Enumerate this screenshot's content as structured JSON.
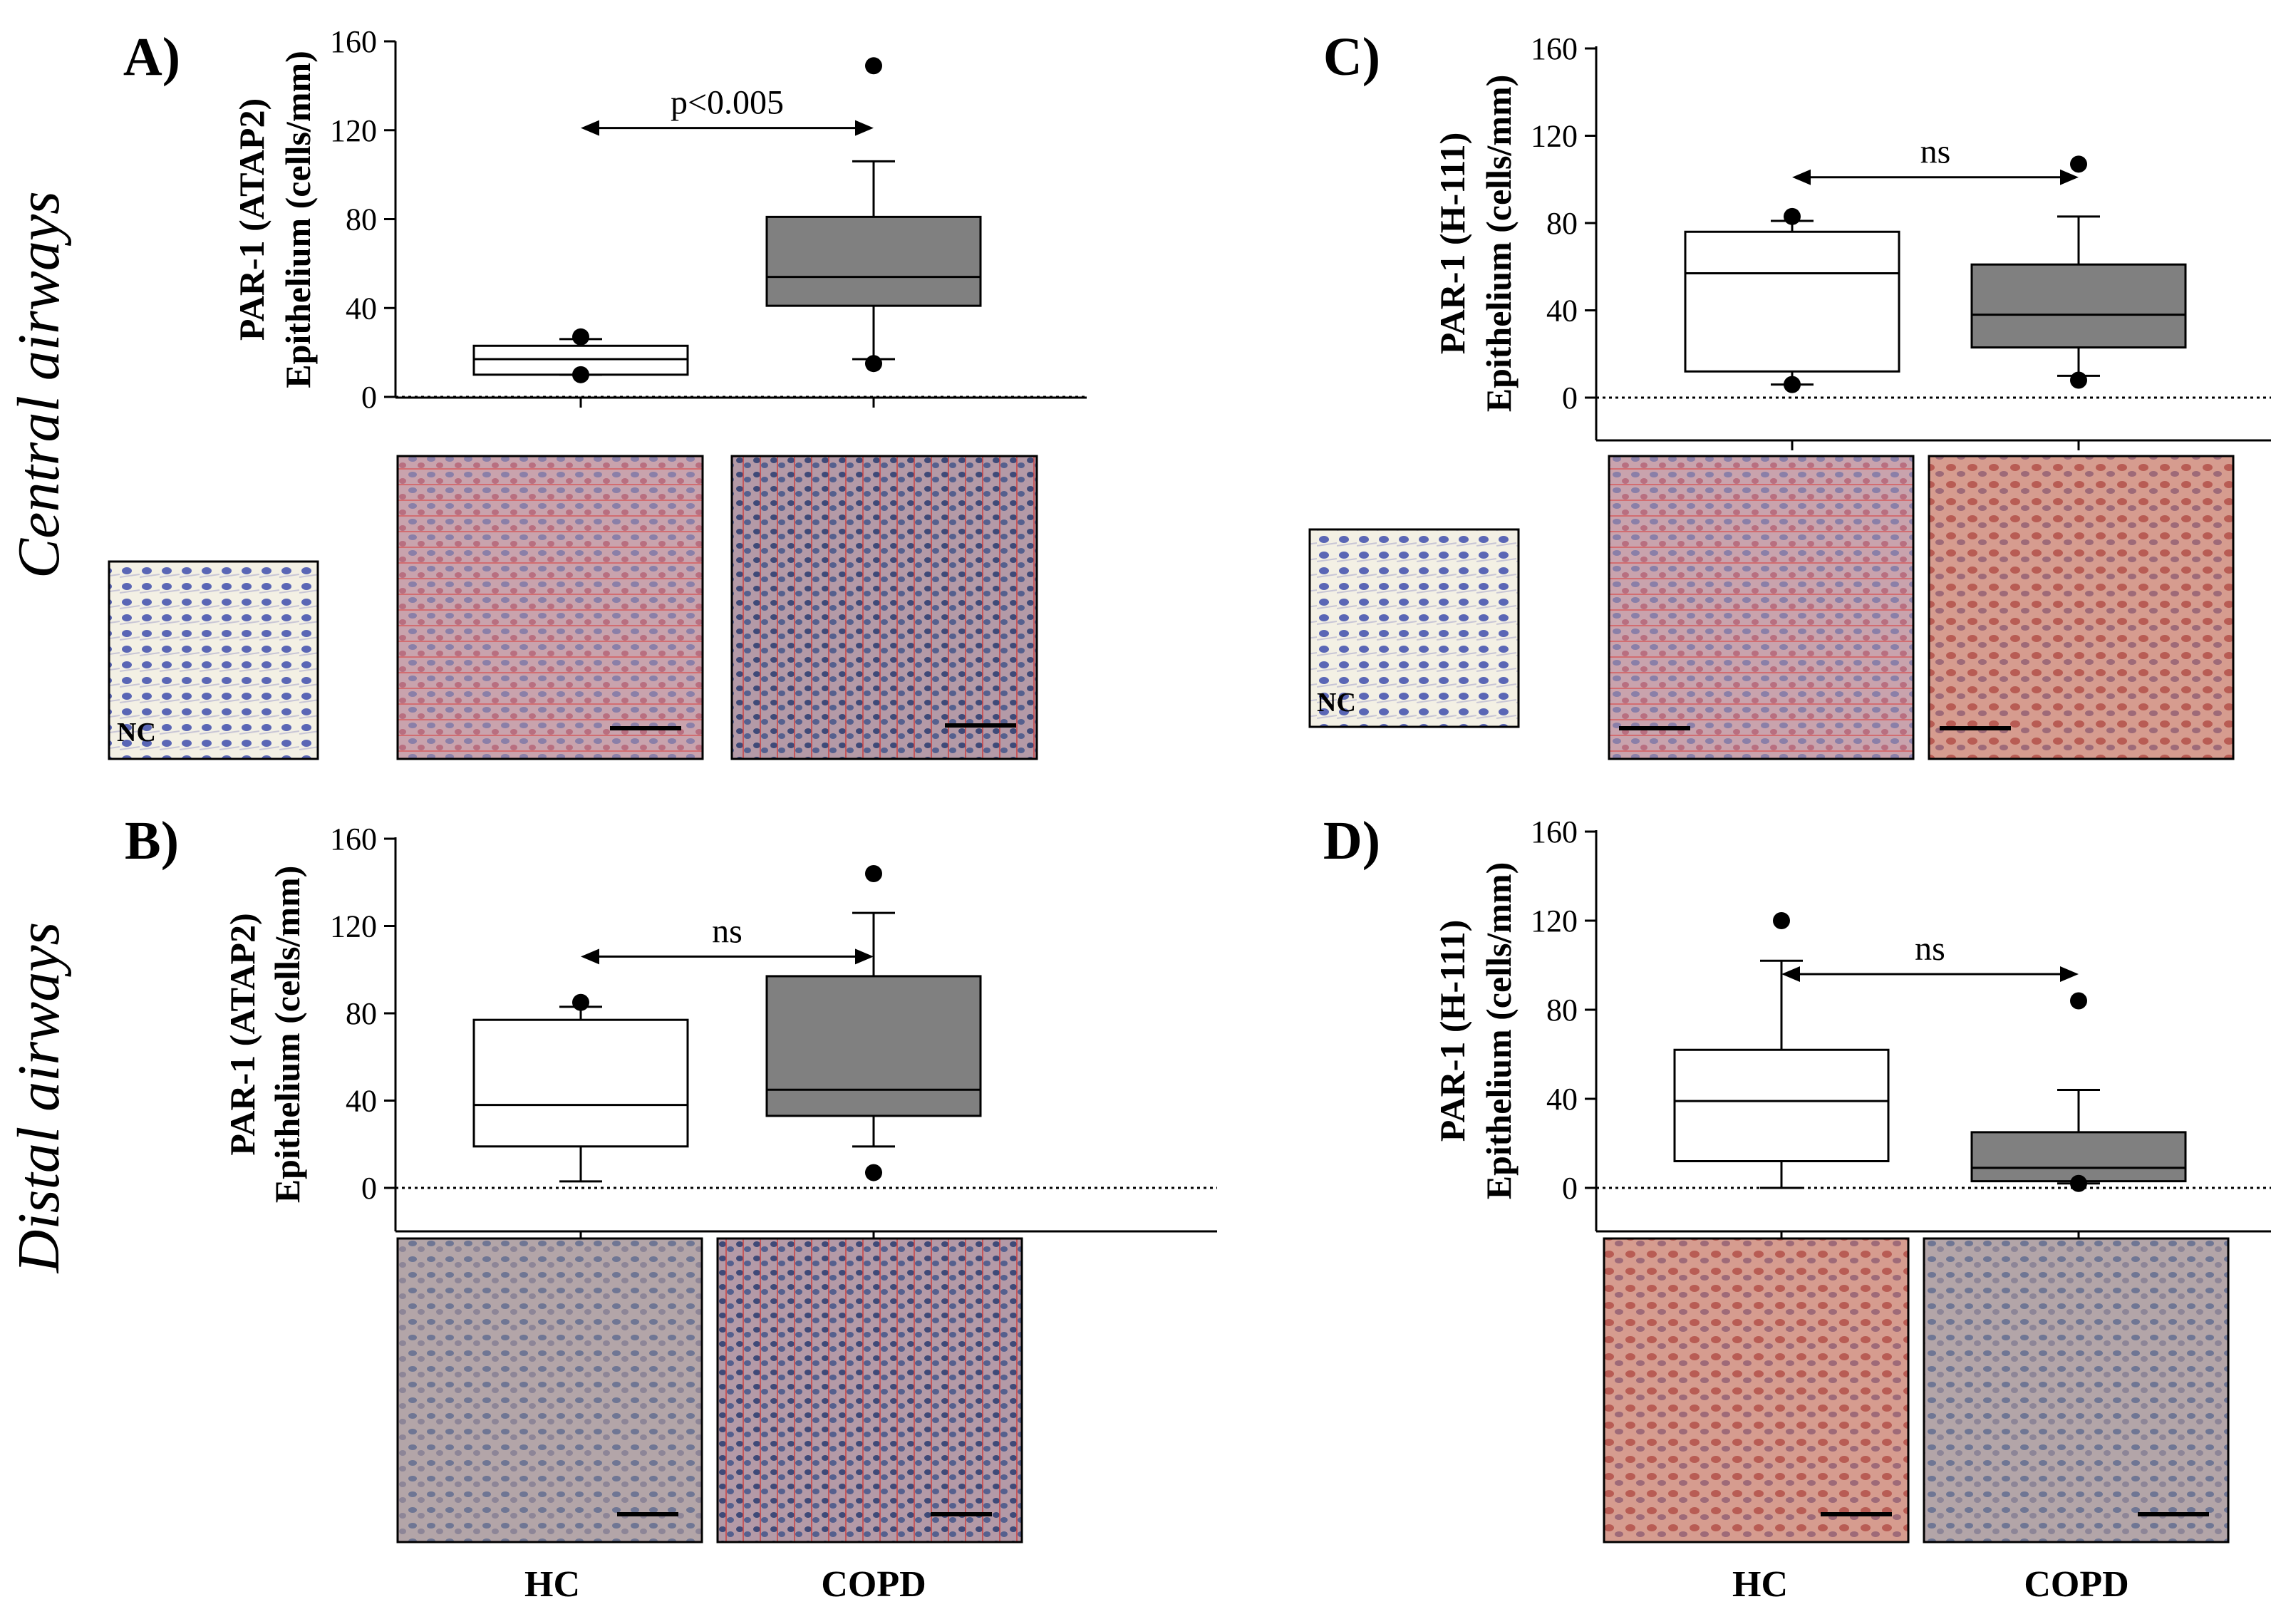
{
  "row_labels": [
    "Central airways",
    "Distal airways"
  ],
  "group_labels": [
    "HC",
    "COPD"
  ],
  "nc_label": "NC",
  "colors": {
    "hc_box": "#ffffff",
    "copd_box": "#808080",
    "stroke": "#000000"
  },
  "chart_data": [
    {
      "type": "box",
      "panel": "A)",
      "ylabel_line1": "PAR-1 (ATAP2)",
      "ylabel_line2": "Epithelium (cells/mm)",
      "ylim": [
        0,
        160
      ],
      "yticks": [
        0,
        40,
        80,
        120,
        160
      ],
      "annotation": "p<0.005",
      "categories": [
        "HC",
        "COPD"
      ],
      "series": [
        {
          "group": "HC",
          "whisker_low": 10,
          "q1": 10,
          "median": 17,
          "q3": 23,
          "whisker_high": 26,
          "outliers": [
            10,
            27
          ]
        },
        {
          "group": "COPD",
          "whisker_low": 17,
          "q1": 41,
          "median": 54,
          "q3": 81,
          "whisker_high": 106,
          "outliers": [
            15,
            149
          ]
        }
      ]
    },
    {
      "type": "box",
      "panel": "B)",
      "ylabel_line1": "PAR-1 (ATAP2)",
      "ylabel_line2": "Epithelium (cells/mm)",
      "ylim": [
        0,
        160
      ],
      "yticks": [
        0,
        40,
        80,
        120,
        160
      ],
      "annotation": "ns",
      "categories": [
        "HC",
        "COPD"
      ],
      "series": [
        {
          "group": "HC",
          "whisker_low": 3,
          "q1": 19,
          "median": 38,
          "q3": 77,
          "whisker_high": 83,
          "outliers": [
            85
          ]
        },
        {
          "group": "COPD",
          "whisker_low": 19,
          "q1": 33,
          "median": 45,
          "q3": 97,
          "whisker_high": 126,
          "outliers": [
            7,
            144
          ]
        }
      ]
    },
    {
      "type": "box",
      "panel": "C)",
      "ylabel_line1": "PAR-1 (H-111)",
      "ylabel_line2": "Epithelium (cells/mm)",
      "ylim": [
        0,
        160
      ],
      "yticks": [
        0,
        40,
        80,
        120,
        160
      ],
      "annotation": "ns",
      "categories": [
        "HC",
        "COPD"
      ],
      "series": [
        {
          "group": "HC",
          "whisker_low": 6,
          "q1": 12,
          "median": 57,
          "q3": 76,
          "whisker_high": 81,
          "outliers": [
            6,
            83
          ]
        },
        {
          "group": "COPD",
          "whisker_low": 10,
          "q1": 23,
          "median": 38,
          "q3": 61,
          "whisker_high": 83,
          "outliers": [
            8,
            107
          ]
        }
      ]
    },
    {
      "type": "box",
      "panel": "D)",
      "ylabel_line1": "PAR-1 (H-111)",
      "ylabel_line2": "Epithelium (cells/mm)",
      "ylim": [
        0,
        160
      ],
      "yticks": [
        0,
        40,
        80,
        120,
        160
      ],
      "annotation": "ns",
      "categories": [
        "HC",
        "COPD"
      ],
      "series": [
        {
          "group": "HC",
          "whisker_low": 0,
          "q1": 12,
          "median": 39,
          "q3": 62,
          "whisker_high": 102,
          "outliers": [
            120
          ]
        },
        {
          "group": "COPD",
          "whisker_low": 2,
          "q1": 3,
          "median": 9,
          "q3": 25,
          "whisker_high": 44,
          "outliers": [
            2,
            84
          ]
        }
      ]
    }
  ]
}
